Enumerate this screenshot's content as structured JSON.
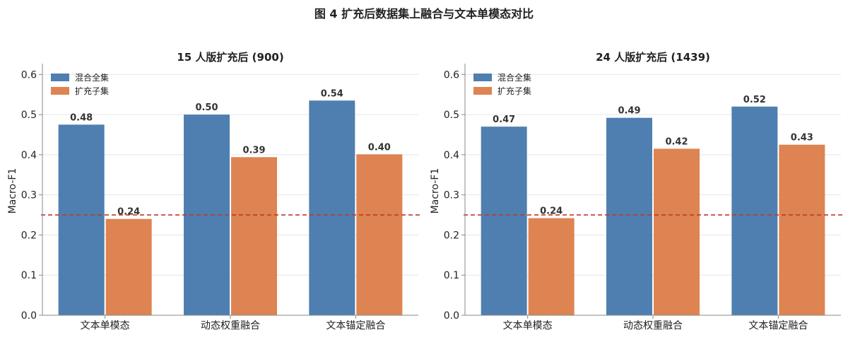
{
  "figure_title": "图 4  扩充后数据集上融合与文本单模态对比",
  "colors": {
    "series1": "#4e7fb0",
    "series2": "#dd8452",
    "reference": "#c0392b",
    "grid": "#e6e6e6",
    "axis": "#888888"
  },
  "chart_data": [
    {
      "type": "bar",
      "title": "15 人版扩充后 (900)",
      "ylabel": "Macro-F1",
      "xlabel": "",
      "ylim": [
        0,
        0.62
      ],
      "yticks": [
        "0.0",
        "0.1",
        "0.2",
        "0.3",
        "0.4",
        "0.5",
        "0.6"
      ],
      "grid": true,
      "legend_position": "top-left",
      "reference_line": 0.25,
      "categories": [
        "文本单模态",
        "动态权重融合",
        "文本锚定融合"
      ],
      "series": [
        {
          "name": "混合全集",
          "values": [
            0.475,
            0.5,
            0.535
          ],
          "labels": [
            "0.48",
            "0.50",
            "0.54"
          ]
        },
        {
          "name": "扩充子集",
          "values": [
            0.24,
            0.394,
            0.401
          ],
          "labels": [
            "0.24",
            "0.39",
            "0.40"
          ]
        }
      ]
    },
    {
      "type": "bar",
      "title": "24 人版扩充后 (1439)",
      "ylabel": "Macro-F1",
      "xlabel": "",
      "ylim": [
        0,
        0.62
      ],
      "yticks": [
        "0.0",
        "0.1",
        "0.2",
        "0.3",
        "0.4",
        "0.5",
        "0.6"
      ],
      "grid": true,
      "legend_position": "top-left",
      "reference_line": 0.25,
      "categories": [
        "文本单模态",
        "动态权重融合",
        "文本锚定融合"
      ],
      "series": [
        {
          "name": "混合全集",
          "values": [
            0.47,
            0.492,
            0.52
          ],
          "labels": [
            "0.47",
            "0.49",
            "0.52"
          ]
        },
        {
          "name": "扩充子集",
          "values": [
            0.242,
            0.415,
            0.425
          ],
          "labels": [
            "0.24",
            "0.42",
            "0.43"
          ]
        }
      ]
    }
  ]
}
